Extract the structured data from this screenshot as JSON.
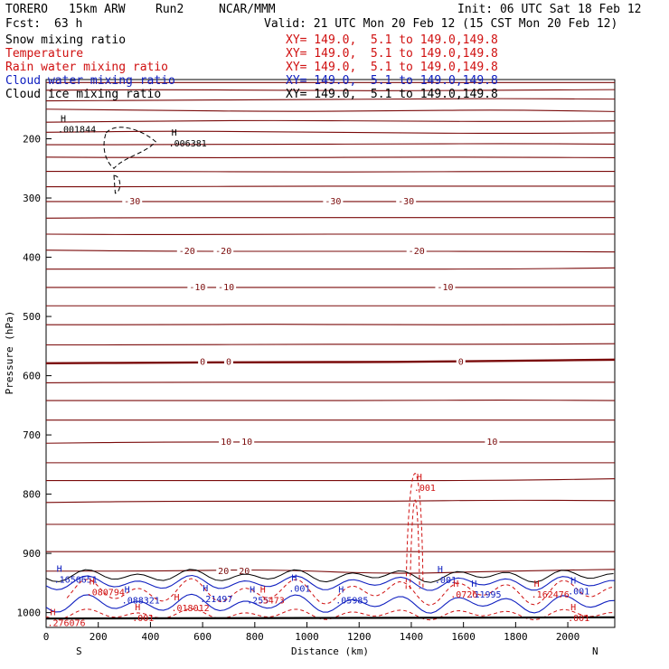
{
  "header": {
    "model": "TORERO",
    "resolution": "15km ARW",
    "run": "Run2",
    "center": "NCAR/MMM",
    "init": "Init: 06 UTC Sat 18 Feb 12",
    "fcst_label": "Fcst:",
    "fcst_value": "63 h",
    "valid": "Valid: 21 UTC Mon 20 Feb 12 (15 CST Mon 20 Feb 12)"
  },
  "legend": [
    {
      "label": "Snow mixing ratio",
      "xy": "XY= 149.0,  5.1 to 149.0,149.8",
      "color": "#000000"
    },
    {
      "label": "Temperature",
      "xy": "XY= 149.0,  5.1 to 149.0,149.8",
      "color": "#d01010"
    },
    {
      "label": "Rain water mixing ratio",
      "xy": "XY= 149.0,  5.1 to 149.0,149.8",
      "color": "#d01010"
    },
    {
      "label": "Cloud water mixing ratio",
      "xy": "XY= 149.0,  5.1 to 149.0,149.8",
      "color": "#1020c0"
    },
    {
      "label": "Cloud ice mixing ratio",
      "xy": "XY= 149.0,  5.1 to 149.0,149.8",
      "color": "#000000"
    }
  ],
  "chart_data": {
    "type": "cross-section contour",
    "xlabel": "Distance (km)",
    "ylabel": "Pressure (hPa)",
    "xlim": [
      0,
      2180
    ],
    "ylim": [
      1025,
      100
    ],
    "x_ticks": [
      0,
      200,
      400,
      600,
      800,
      1000,
      1200,
      1400,
      1600,
      1800,
      2000
    ],
    "y_ticks": [
      200,
      300,
      400,
      500,
      600,
      700,
      800,
      900,
      1000
    ],
    "x_end_labels": [
      "S",
      "N"
    ],
    "temperature_contours": [
      {
        "p": 105,
        "dp": [
          0,
          0,
          0,
          0,
          0,
          0
        ]
      },
      {
        "p": 118,
        "dp": [
          0,
          -1,
          0,
          1,
          0,
          -1
        ]
      },
      {
        "p": 134,
        "dp": [
          2,
          1,
          0,
          -1,
          -2,
          -1
        ]
      },
      {
        "p": 152,
        "dp": [
          -2,
          0,
          2,
          1,
          -1,
          2
        ]
      },
      {
        "p": 170,
        "dp": [
          2,
          0,
          -1,
          0,
          1,
          0
        ]
      },
      {
        "p": 189,
        "dp": [
          0,
          -2,
          -1,
          1,
          2,
          1
        ]
      },
      {
        "p": 209,
        "dp": [
          1,
          1,
          0,
          0,
          -1,
          0
        ]
      },
      {
        "p": 231,
        "dp": [
          0,
          1,
          1,
          0,
          0,
          1
        ]
      },
      {
        "p": 255,
        "dp": [
          0,
          0,
          1,
          1,
          0,
          0
        ]
      },
      {
        "p": 280,
        "dp": [
          1,
          1,
          0,
          0,
          0,
          0
        ]
      },
      {
        "p": 306,
        "dp": [
          0,
          0,
          0,
          0,
          0,
          0
        ],
        "label": "-30",
        "label_x": [
          330,
          1100,
          1380
        ]
      },
      {
        "p": 333,
        "dp": [
          1,
          0,
          0,
          0,
          0,
          0
        ]
      },
      {
        "p": 361,
        "dp": [
          0,
          1,
          0,
          0,
          0,
          0
        ]
      },
      {
        "p": 390,
        "dp": [
          -2,
          0,
          0,
          0,
          0,
          1
        ],
        "label": "-20",
        "label_x": [
          540,
          680,
          1420
        ]
      },
      {
        "p": 420,
        "dp": [
          0,
          0,
          0,
          0,
          0,
          -2
        ]
      },
      {
        "p": 451,
        "dp": [
          0,
          0,
          0,
          0,
          0,
          0
        ],
        "label": "-10",
        "label_x": [
          580,
          690,
          1530
        ]
      },
      {
        "p": 482,
        "dp": [
          0,
          0,
          0,
          0,
          0,
          0
        ]
      },
      {
        "p": 514,
        "dp": [
          0,
          0,
          -1,
          0,
          0,
          -1
        ]
      },
      {
        "p": 547,
        "dp": [
          1,
          1,
          0,
          0,
          0,
          -1
        ]
      },
      {
        "p": 577,
        "dp": [
          2,
          1,
          0,
          0,
          -2,
          -4
        ],
        "label": "0",
        "label_x": [
          600,
          700,
          1590
        ],
        "bold": true
      },
      {
        "p": 611,
        "dp": [
          1,
          0,
          0,
          0,
          0,
          0
        ]
      },
      {
        "p": 642,
        "dp": [
          0,
          0,
          0,
          0,
          -1,
          0
        ]
      },
      {
        "p": 675,
        "dp": [
          0,
          0,
          0,
          0,
          0,
          0
        ]
      },
      {
        "p": 712,
        "dp": [
          2,
          0,
          0,
          0,
          0,
          0
        ],
        "label": "10",
        "label_x": [
          690,
          770,
          1710
        ]
      },
      {
        "p": 747,
        "dp": [
          0,
          0,
          0,
          0,
          0,
          0
        ]
      },
      {
        "p": 777,
        "dp": [
          0,
          0,
          0,
          0,
          0,
          -3
        ]
      },
      {
        "p": 812,
        "dp": [
          2,
          0,
          0,
          0,
          -2,
          -1
        ]
      },
      {
        "p": 851,
        "dp": [
          0,
          0,
          0,
          0,
          0,
          0
        ]
      },
      {
        "p": 897,
        "dp": [
          0,
          0,
          0,
          0,
          0,
          0
        ]
      },
      {
        "p": 930,
        "dp": [
          0,
          0,
          -3,
          5,
          0,
          -3
        ],
        "label": "20",
        "label_x": [
          680,
          760
        ]
      }
    ],
    "max_labels": [
      {
        "x": 45,
        "p": 185,
        "value": ".001844",
        "color": "#000000"
      },
      {
        "x": 470,
        "p": 208,
        "value": ".006381",
        "color": "#000000"
      },
      {
        "x": 30,
        "p": 945,
        "value": ".1650651",
        "color": "#1020c0"
      },
      {
        "x": 155,
        "p": 966,
        "value": ".080794",
        "color": "#d01010"
      },
      {
        "x": 290,
        "p": 980,
        "value": ".088321",
        "color": "#1020c0"
      },
      {
        "x": 480,
        "p": 993,
        "value": ".018012",
        "color": "#d01010"
      },
      {
        "x": 590,
        "p": 978,
        "value": ".21497",
        "color": "#1020c0"
      },
      {
        "x": 770,
        "p": 980,
        "value": ".255",
        "color": "#1020c0"
      },
      {
        "x": 810,
        "p": 980,
        "value": ".5473",
        "color": "#d01010"
      },
      {
        "x": 1110,
        "p": 980,
        "value": ".05985",
        "color": "#1020c0"
      },
      {
        "x": 1490,
        "p": 946,
        "value": ".001",
        "color": "#1020c0"
      },
      {
        "x": 1550,
        "p": 970,
        "value": ".0726",
        "color": "#d01010"
      },
      {
        "x": 1620,
        "p": 970,
        "value": ".11995",
        "color": "#1020c0"
      },
      {
        "x": 1860,
        "p": 970,
        "value": ".162476",
        "color": "#d01010"
      },
      {
        "x": 1410,
        "p": 790,
        "value": ".001",
        "color": "#d01010"
      },
      {
        "x": 330,
        "p": 1010,
        "value": ".001",
        "color": "#d01010"
      },
      {
        "x": 2000,
        "p": 1010,
        "value": ".001",
        "color": "#d01010"
      },
      {
        "x": 930,
        "p": 960,
        "value": ".001",
        "color": "#1020c0"
      },
      {
        "x": 2000,
        "p": 965,
        "value": ".001",
        "color": "#1020c0"
      },
      {
        "x": 5,
        "p": 1018,
        "value": ".276076",
        "color": "#d01010"
      }
    ]
  }
}
